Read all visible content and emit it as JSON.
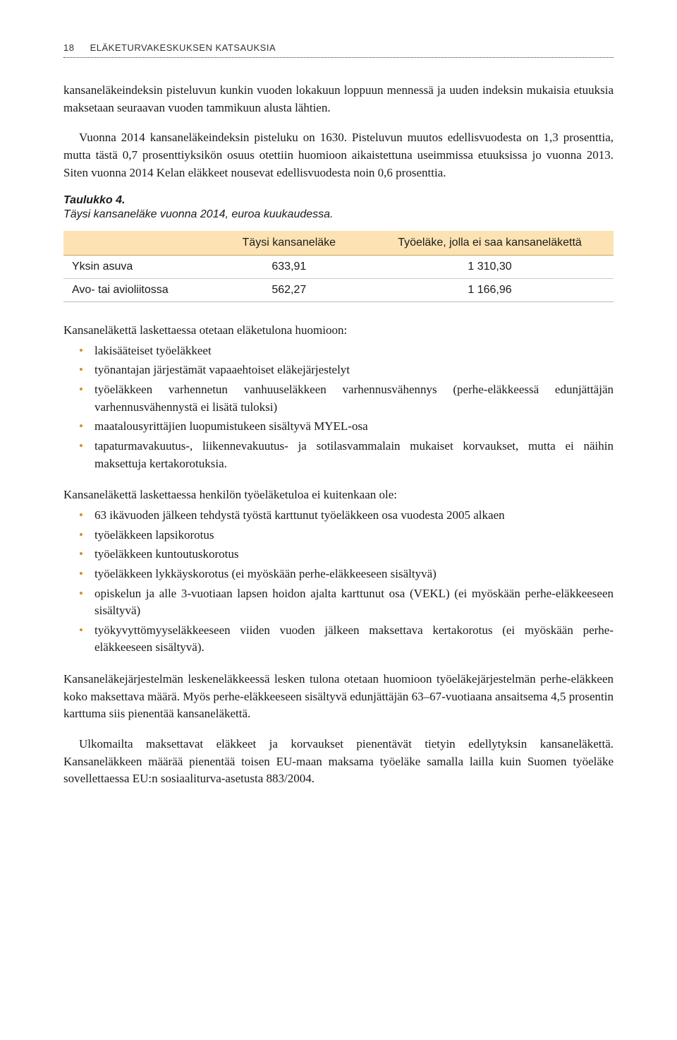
{
  "header": {
    "page_number": "18",
    "title": "ELÄKETURVAKESKUKSEN KATSAUKSIA"
  },
  "para1": "kansaneläkeindeksin pisteluvun kunkin vuoden lokakuun loppuun mennessä ja uuden indeksin mukaisia etuuksia maksetaan seuraavan vuoden tammikuun alusta lähtien.",
  "para2": "Vuonna 2014 kansaneläkeindeksin pisteluku on 1630. Pisteluvun muutos edellisvuodesta on 1,3 prosenttia, mutta tästä 0,7 prosenttiyksikön osuus otettiin huomioon aikaistettuna useimmissa etuuksissa jo vuonna 2013. Siten vuonna 2014 Kelan eläkkeet nousevat edellisvuodesta noin 0,6 prosenttia.",
  "table4": {
    "title": "Taulukko 4.",
    "subtitle": "Täysi kansaneläke vuonna 2014, euroa kuukaudessa.",
    "header_bg": "#fde3b3",
    "header_border": "#c9a85a",
    "columns": [
      "",
      "Täysi kansaneläke",
      "Työeläke, jolla ei saa kansaneläkettä"
    ],
    "rows": [
      {
        "label": "Yksin asuva",
        "col1": "633,91",
        "col2": "1 310,30"
      },
      {
        "label": "Avo- tai avioliitossa",
        "col1": "562,27",
        "col2": "1 166,96"
      }
    ]
  },
  "list1_intro": "Kansaneläkettä laskettaessa otetaan eläketulona huomioon:",
  "list1": [
    "lakisääteiset työeläkkeet",
    "työnantajan järjestämät vapaaehtoiset eläkejärjestelyt",
    "työeläkkeen varhennetun vanhuuseläkkeen varhennusvähennys (perhe-eläkkeessä edunjättäjän varhennusvähennystä ei lisätä tuloksi)",
    "maatalousyrittäjien luopumistukeen sisältyvä MYEL-osa",
    "tapaturmavakuutus-, liikennevakuutus- ja sotilasvammalain mukaiset korvaukset, mutta ei näihin maksettuja kertakorotuksia."
  ],
  "list2_intro": "Kansaneläkettä laskettaessa henkilön työeläketuloa ei kuitenkaan ole:",
  "list2": [
    "63 ikävuoden jälkeen tehdystä työstä karttunut työeläkkeen osa vuodesta 2005 alkaen",
    "työeläkkeen lapsikorotus",
    "työeläkkeen kuntoutuskorotus",
    "työeläkkeen lykkäyskorotus (ei myöskään perhe-eläkkeeseen sisältyvä)",
    "opiskelun ja alle 3-vuotiaan lapsen hoidon ajalta karttunut osa (VEKL) (ei myöskään perhe-eläkkeeseen sisältyvä)",
    "työkyvyttömyyseläkkeeseen viiden vuoden jälkeen maksettava kertakorotus (ei myöskään perhe-eläkkeeseen sisältyvä)."
  ],
  "para3": "Kansaneläkejärjestelmän leskeneläkkeessä lesken tulona otetaan huomioon työeläkejärjestelmän perhe-eläkkeen koko maksettava määrä. Myös perhe-eläkkeeseen sisältyvä edunjättäjän 63–67-vuotiaana ansaitsema 4,5 prosentin karttuma siis pienentää kansaneläkettä.",
  "para4": "Ulkomailta maksettavat eläkkeet ja korvaukset pienentävät tietyin edellytyksin kansaneläkettä. Kansaneläkkeen määrää pienentää toisen EU-maan maksama työeläke samalla lailla kuin Suomen työeläke sovellettaessa EU:n sosiaaliturva-asetusta 883/2004.",
  "style": {
    "bullet_color": "#d88a2a"
  }
}
